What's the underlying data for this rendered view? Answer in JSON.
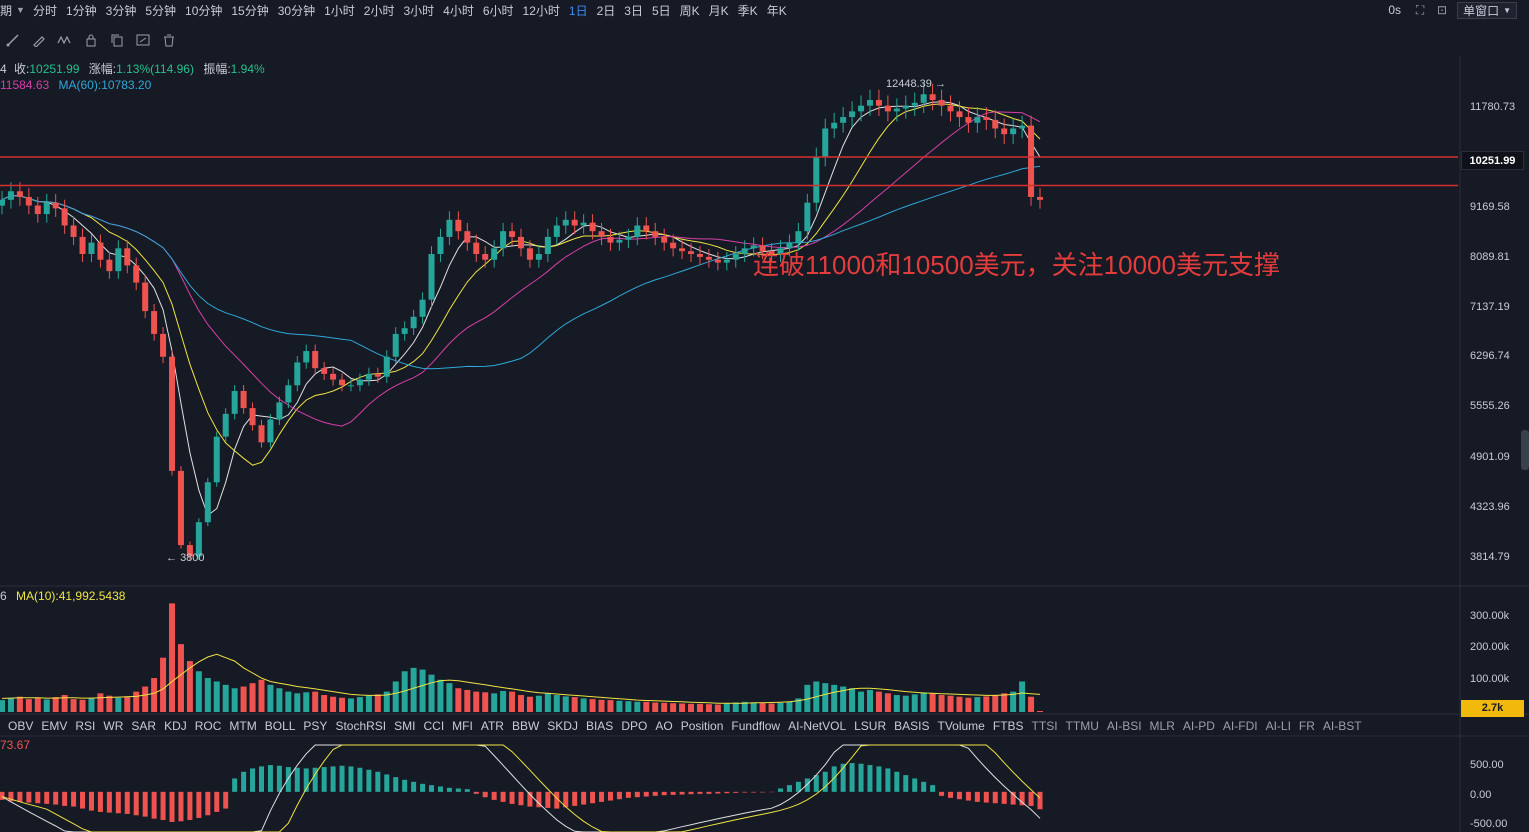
{
  "toolbar": {
    "period_prefix": "期",
    "intervals": [
      "分时",
      "1分钟",
      "3分钟",
      "5分钟",
      "10分钟",
      "15分钟",
      "30分钟",
      "1小时",
      "2小时",
      "3小时",
      "4小时",
      "6小时",
      "12小时",
      "1日",
      "2日",
      "3日",
      "5日",
      "周K",
      "月K",
      "季K",
      "年K"
    ],
    "active_index": 13,
    "timer": "0s",
    "window_mode": "单窗口"
  },
  "legend": {
    "close_label": "收:",
    "close_value": "10251.99",
    "change_label": "涨幅:",
    "change_value": "1.13%(114.96)",
    "amplitude_label": "振幅:",
    "amplitude_value": "1.94%",
    "ma_left": "11584.63",
    "ma60_label": "MA(60):",
    "ma60_value": "10783.20",
    "vol_prefix": "6",
    "vol_ma_label": "MA(10):",
    "vol_ma_value": "41,992.5438",
    "osc_value": "73.67"
  },
  "colors": {
    "up": "#26a69a",
    "down": "#ef5350",
    "ma_fast": "#f0e442",
    "ma_mid": "#d63fa6",
    "ma_slow": "#2fa8d8",
    "line": "#e0e0e0",
    "hline": "#d32f2f",
    "background": "#161a25"
  },
  "price_axis": [
    "11780.73",
    "10251.99",
    "9169.58",
    "8089.81",
    "7137.19",
    "6296.74",
    "5555.26",
    "4901.09",
    "4323.96",
    "3814.79"
  ],
  "current_price": "10251.99",
  "volume_axis": [
    "300.00k",
    "200.00k",
    "100.00k"
  ],
  "volume_current": "2.7k",
  "osc_axis": [
    "500.00",
    "0.00",
    "-500.00"
  ],
  "annotation": "连破11000和10500美元，关注10000美元支撑",
  "extremes": {
    "high": "12448.39",
    "low": "3800"
  },
  "indicators": [
    "OBV",
    "EMV",
    "RSI",
    "WR",
    "SAR",
    "KDJ",
    "ROC",
    "MTM",
    "BOLL",
    "PSY",
    "StochRSI",
    "SMI",
    "CCI",
    "MFI",
    "ATR",
    "BBW",
    "SKDJ",
    "BIAS",
    "DPO",
    "AO",
    "Position",
    "Fundflow",
    "AI-NetVOL",
    "LSUR",
    "BASIS",
    "TVolume",
    "FTBS",
    "TTSI",
    "TTMU",
    "AI-BSI",
    "MLR",
    "AI-PD",
    "AI-FDI",
    "AI-LI",
    "FR",
    "AI-BST"
  ],
  "chart_data": {
    "type": "candlestick",
    "price_range": [
      3500,
      12700
    ],
    "hlines": [
      11000,
      10500
    ],
    "closes": [
      10250,
      10400,
      10300,
      10150,
      10000,
      10200,
      10100,
      9800,
      9600,
      9300,
      9500,
      9200,
      9000,
      9400,
      9100,
      8800,
      8300,
      7900,
      7500,
      5500,
      4200,
      4000,
      4600,
      5300,
      6100,
      6500,
      6900,
      6600,
      6300,
      6000,
      6400,
      6700,
      7000,
      7400,
      7600,
      7300,
      7200,
      7100,
      7000,
      7000,
      7100,
      7200,
      7150,
      7500,
      7900,
      8000,
      8200,
      8500,
      9300,
      9600,
      9900,
      9700,
      9500,
      9300,
      9200,
      9400,
      9700,
      9600,
      9400,
      9200,
      9300,
      9600,
      9800,
      9900,
      9800,
      9850,
      9700,
      9600,
      9500,
      9550,
      9600,
      9800,
      9700,
      9600,
      9500,
      9400,
      9350,
      9300,
      9250,
      9200,
      9150,
      9200,
      9300,
      9400,
      9450,
      9350,
      9300,
      9400,
      9500,
      9700,
      10200,
      11000,
      11500,
      11600,
      11700,
      11800,
      11900,
      12000,
      11900,
      11800,
      11850,
      11900,
      11950,
      12100,
      12000,
      11900,
      11800,
      11700,
      11600,
      11700,
      11650,
      11500,
      11400,
      11500,
      11550,
      10300,
      10250
    ],
    "volumes": [
      35,
      40,
      45,
      38,
      42,
      37,
      44,
      50,
      38,
      36,
      40,
      55,
      48,
      42,
      46,
      60,
      75,
      100,
      160,
      320,
      200,
      150,
      120,
      100,
      90,
      80,
      70,
      75,
      85,
      95,
      80,
      70,
      60,
      55,
      58,
      60,
      50,
      45,
      42,
      40,
      44,
      48,
      52,
      60,
      90,
      120,
      130,
      125,
      110,
      95,
      85,
      70,
      65,
      60,
      58,
      55,
      62,
      60,
      50,
      45,
      48,
      55,
      50,
      46,
      44,
      40,
      38,
      36,
      35,
      33,
      32,
      30,
      30,
      28,
      27,
      26,
      25,
      24,
      24,
      23,
      22,
      25,
      28,
      30,
      28,
      26,
      25,
      27,
      30,
      40,
      80,
      90,
      85,
      80,
      75,
      70,
      60,
      65,
      60,
      55,
      50,
      48,
      52,
      58,
      55,
      50,
      48,
      45,
      42,
      44,
      46,
      50,
      55,
      60,
      90,
      45,
      3
    ],
    "volume_ma": [
      40,
      41,
      42,
      42,
      42,
      41,
      41,
      42,
      42,
      41,
      41,
      42,
      43,
      44,
      45,
      46,
      50,
      55,
      68,
      90,
      110,
      130,
      148,
      162,
      170,
      160,
      150,
      130,
      115,
      100,
      90,
      85,
      80,
      75,
      72,
      68,
      64,
      60,
      56,
      52,
      50,
      49,
      49,
      50,
      55,
      62,
      70,
      78,
      86,
      92,
      94,
      92,
      88,
      84,
      80,
      76,
      72,
      68,
      64,
      60,
      57,
      55,
      53,
      51,
      49,
      47,
      45,
      43,
      41,
      39,
      37,
      35,
      34,
      33,
      32,
      31,
      30,
      29,
      28,
      27,
      26,
      26,
      26,
      26,
      27,
      27,
      28,
      29,
      30,
      33,
      38,
      45,
      52,
      58,
      63,
      68,
      70,
      70,
      68,
      66,
      63,
      60,
      58,
      56,
      55,
      54,
      53,
      52,
      51,
      50,
      49,
      49,
      50,
      52,
      56,
      54,
      52
    ],
    "osc_histogram": [
      -120,
      -140,
      -150,
      -160,
      -170,
      -180,
      -190,
      -210,
      -220,
      -250,
      -280,
      -300,
      -310,
      -320,
      -330,
      -350,
      -370,
      -400,
      -420,
      -450,
      -440,
      -420,
      -390,
      -350,
      -300,
      -250,
      200,
      300,
      350,
      380,
      400,
      390,
      370,
      360,
      350,
      360,
      370,
      380,
      390,
      380,
      360,
      330,
      300,
      260,
      220,
      180,
      150,
      120,
      100,
      80,
      60,
      50,
      40,
      -30,
      -80,
      -120,
      -150,
      -180,
      -200,
      -220,
      -230,
      -240,
      -250,
      -230,
      -210,
      -190,
      -170,
      -150,
      -130,
      -110,
      -90,
      -80,
      -70,
      -60,
      -50,
      -45,
      -40,
      -35,
      -30,
      -30,
      -25,
      -20,
      -15,
      -10,
      -10,
      -8,
      -5,
      50,
      100,
      150,
      200,
      250,
      300,
      380,
      420,
      430,
      420,
      400,
      380,
      350,
      300,
      250,
      200,
      150,
      100,
      -60,
      -90,
      -110,
      -130,
      -150,
      -160,
      -170,
      -180,
      -190,
      -200,
      -210,
      -260
    ],
    "osc_range": [
      -600,
      700
    ]
  }
}
